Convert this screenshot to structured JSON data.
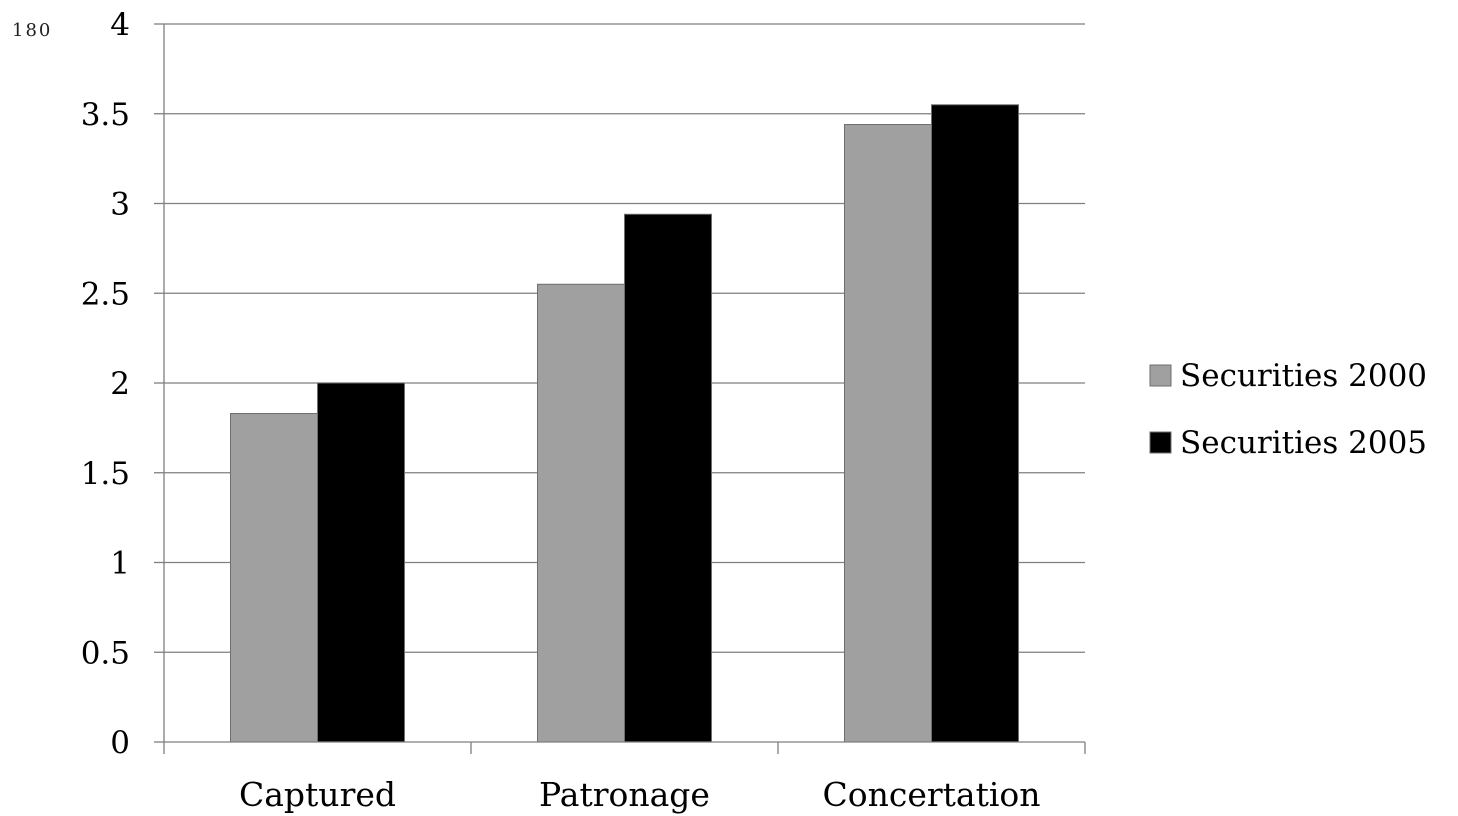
{
  "page_number": "180",
  "chart_data": {
    "type": "bar",
    "categories": [
      "Captured",
      "Patronage",
      "Concertation"
    ],
    "series": [
      {
        "name": "Securities 2000",
        "color": "#a0a0a0",
        "values": [
          1.83,
          2.55,
          3.44
        ]
      },
      {
        "name": "Securities 2005",
        "color": "#000000",
        "values": [
          2.0,
          2.94,
          3.55
        ]
      }
    ],
    "yticks": [
      "0",
      "0.5",
      "1",
      "1.5",
      "2",
      "2.5",
      "3",
      "3.5",
      "4"
    ],
    "ylim": [
      0,
      4
    ],
    "grid": true,
    "legend_position": "right"
  }
}
